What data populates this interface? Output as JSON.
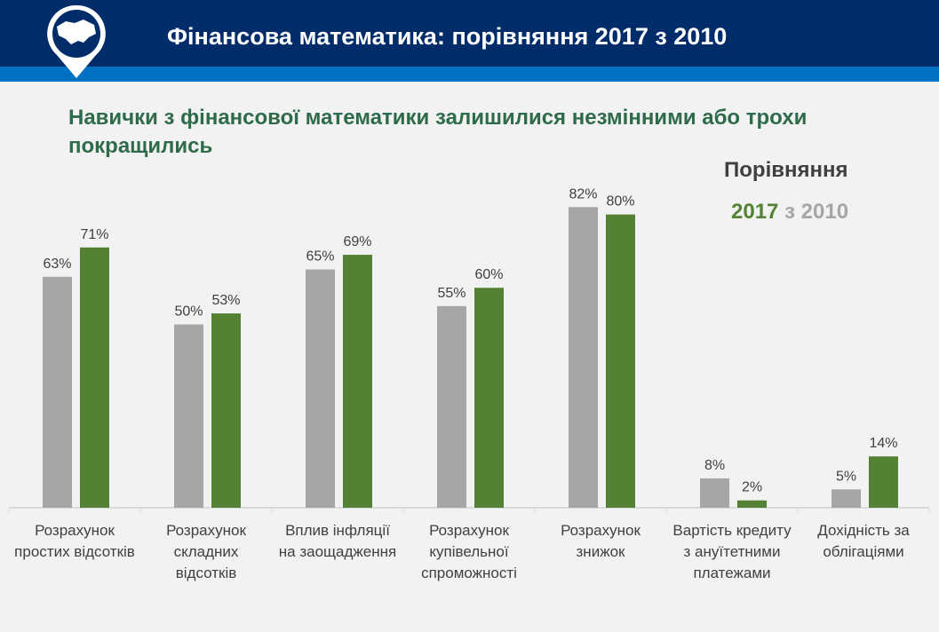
{
  "header": {
    "title": "Фінансова математика: порівняння 2017 з 2010",
    "logo": "ukraine-map-pin-icon"
  },
  "subtitle": "Навички з фінансової математики залишилися незмінними або трохи покращились",
  "legend": {
    "line1": "Порівняння",
    "year_new": "2017",
    "connector": "з",
    "year_old": "2010"
  },
  "colors": {
    "2010": "#a6a6a6",
    "2017": "#548235",
    "header": "#002d6a",
    "stripe": "#0070c0"
  },
  "chart_data": {
    "type": "bar",
    "categories": [
      "Розрахунок простих відсотків",
      "Розрахунок складних відсотків",
      "Вплив інфляції на заощадження",
      "Розрахунок купівельної спроможності",
      "Розрахунок знижок",
      "Вартість кредиту з ануїтетними платежами",
      "Дохідність за облігаціями"
    ],
    "series": [
      {
        "name": "2010",
        "values": [
          63,
          50,
          65,
          55,
          82,
          8,
          5
        ],
        "labels": [
          "63%",
          "50%",
          "65%",
          "55%",
          "82%",
          "8%",
          "5%"
        ]
      },
      {
        "name": "2017",
        "values": [
          71,
          53,
          69,
          60,
          80,
          2,
          14
        ],
        "labels": [
          "71%",
          "53%",
          "69%",
          "60%",
          "80%",
          "2%",
          "14%"
        ]
      }
    ],
    "ylim": [
      0,
      100
    ],
    "grid": false,
    "legend_placement": "top-right"
  }
}
